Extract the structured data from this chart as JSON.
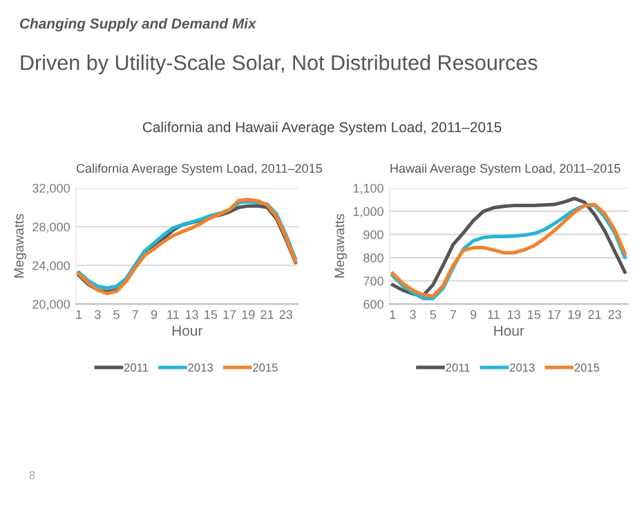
{
  "chart_data": [
    {
      "type": "line",
      "title": "California Average System Load, 2011–2015",
      "xlabel": "Hour",
      "ylabel": "Megawatts",
      "annotations": [
        "Changing Supply and Demand Mix",
        "Driven by Utility-Scale Solar, Not Distributed Resources",
        "California and Hawaii Average System Load, 2011–2015",
        "8"
      ],
      "categories": [
        "1",
        null,
        "3",
        null,
        "5",
        null,
        "7",
        null,
        "9",
        null,
        "11",
        null,
        "13",
        null,
        "15",
        null,
        "17",
        null,
        "19",
        null,
        "21",
        null,
        "23",
        null
      ],
      "series": [
        {
          "name": "2011",
          "color": "#555555",
          "values": [
            22990,
            22040,
            21470,
            21280,
            21470,
            22320,
            23840,
            25170,
            25980,
            26780,
            27640,
            28200,
            28440,
            28680,
            29060,
            29200,
            29530,
            30000,
            30150,
            30150,
            30000,
            28820,
            26690,
            24320
          ]
        },
        {
          "name": "2013",
          "color": "#26b5d6",
          "values": [
            23270,
            22420,
            21850,
            21660,
            21850,
            22610,
            24080,
            25500,
            26310,
            27160,
            27870,
            28200,
            28490,
            28780,
            29150,
            29390,
            29770,
            30480,
            30580,
            30480,
            30340,
            29300,
            27160,
            24700
          ]
        },
        {
          "name": "2015",
          "color": "#f0822e",
          "values": [
            23130,
            22180,
            21470,
            21090,
            21330,
            22320,
            23750,
            25030,
            25740,
            26450,
            27070,
            27490,
            27870,
            28350,
            28920,
            29300,
            29770,
            30720,
            30810,
            30670,
            30250,
            29060,
            26930,
            24410
          ]
        }
      ],
      "ylim": [
        20000,
        32000
      ],
      "yticks": [
        {
          "value": 20000,
          "label": "20,000"
        },
        {
          "value": 24000,
          "label": "24,000"
        },
        {
          "value": 28000,
          "label": "28,000"
        },
        {
          "value": 32000,
          "label": "32,000"
        }
      ],
      "grid": "y",
      "legend": "bottom",
      "marker": "none",
      "line_style": "solid"
    },
    {
      "type": "line",
      "title": "Hawaii Average System Load, 2011–2015",
      "xlabel": "Hour",
      "ylabel": "Megawatts",
      "categories": [
        "1",
        null,
        "3",
        null,
        "5",
        null,
        "7",
        null,
        "9",
        null,
        "11",
        null,
        "13",
        null,
        "15",
        null,
        "17",
        null,
        "19",
        null,
        "21",
        null,
        "23",
        null
      ],
      "series": [
        {
          "name": "2011",
          "color": "#555555",
          "values": [
            683,
            660,
            644,
            636,
            683,
            768,
            857,
            906,
            960,
            1000,
            1015,
            1021,
            1025,
            1025,
            1025,
            1027,
            1029,
            1040,
            1055,
            1039,
            986,
            916,
            827,
            738
          ]
        },
        {
          "name": "2013",
          "color": "#26b5d6",
          "values": [
            722,
            679,
            649,
            624,
            624,
            669,
            758,
            837,
            873,
            887,
            891,
            891,
            893,
            897,
            904,
            920,
            946,
            976,
            1005,
            1025,
            1025,
            976,
            906,
            802
          ]
        },
        {
          "name": "2015",
          "color": "#f0822e",
          "values": [
            732,
            689,
            659,
            640,
            634,
            679,
            768,
            831,
            843,
            843,
            833,
            821,
            821,
            833,
            851,
            881,
            916,
            955,
            995,
            1025,
            1029,
            990,
            920,
            818
          ]
        }
      ],
      "ylim": [
        600,
        1100
      ],
      "yticks": [
        600,
        700,
        800,
        900,
        {
          "value": 1000,
          "label": "1,000"
        },
        {
          "value": 1100,
          "label": "1,100"
        }
      ],
      "grid": "y",
      "legend": "bottom",
      "marker": "none",
      "line_style": "solid"
    }
  ]
}
